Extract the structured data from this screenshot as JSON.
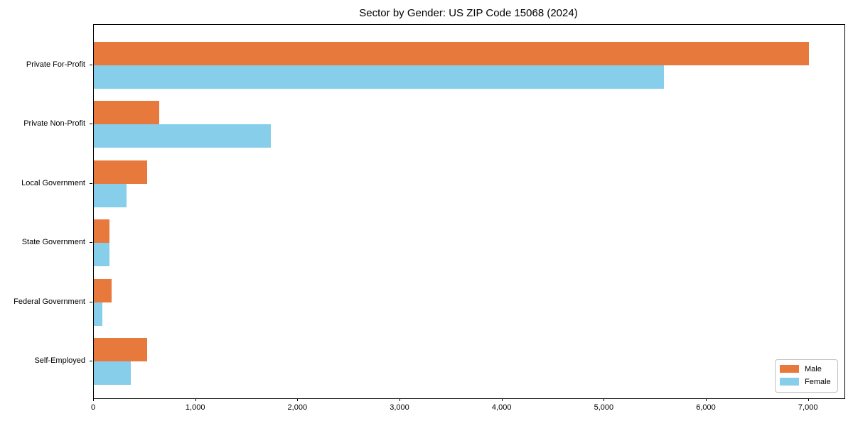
{
  "title": "Sector by Gender: US ZIP Code 15068 (2024)",
  "chart_data": {
    "type": "bar",
    "orientation": "horizontal",
    "title": "Sector by Gender: US ZIP Code 15068 (2024)",
    "categories": [
      "Private For-Profit",
      "Private Non-Profit",
      "Local Government",
      "State Government",
      "Federal Government",
      "Self-Employed"
    ],
    "series": [
      {
        "name": "Male",
        "color": "#E8793C",
        "values": [
          7000,
          640,
          520,
          155,
          175,
          525
        ]
      },
      {
        "name": "Female",
        "color": "#87CEEB",
        "values": [
          5585,
          1730,
          320,
          150,
          80,
          360
        ]
      }
    ],
    "xlabel": "",
    "ylabel": "",
    "xlim": [
      0,
      7350
    ],
    "x_ticks": [
      0,
      1000,
      2000,
      3000,
      4000,
      5000,
      6000,
      7000
    ],
    "x_tick_labels": [
      "0",
      "1,000",
      "2,000",
      "3,000",
      "4,000",
      "5,000",
      "6,000",
      "7,000"
    ],
    "grid": false,
    "legend_position": "lower right",
    "plot_border_color": "#000000",
    "background_color": "#ffffff"
  },
  "legend": {
    "items": [
      {
        "label": "Male",
        "color": "#E8793C"
      },
      {
        "label": "Female",
        "color": "#87CEEB"
      }
    ]
  }
}
